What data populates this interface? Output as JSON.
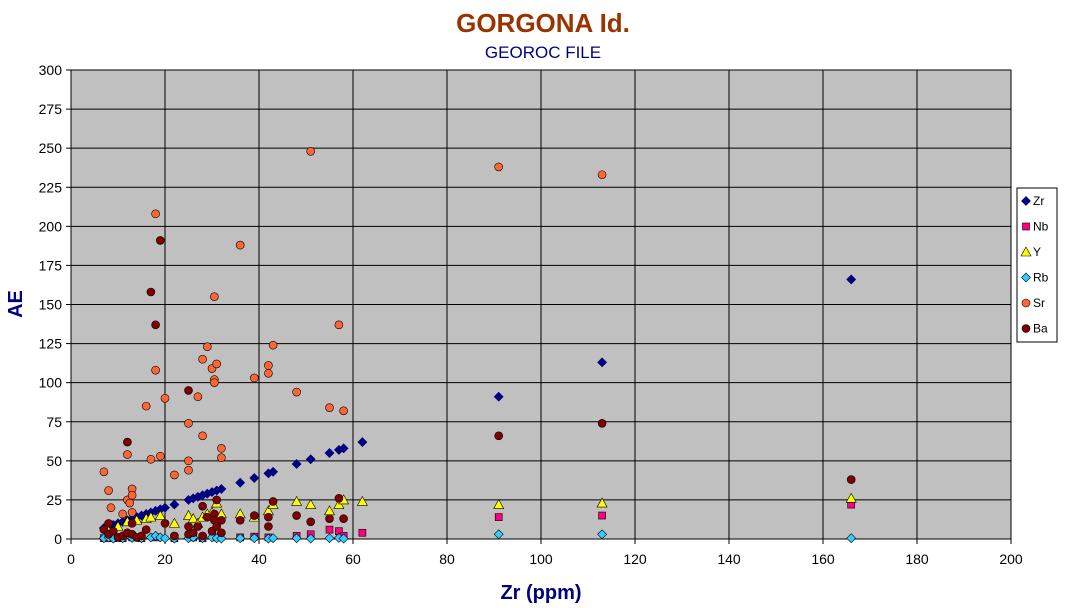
{
  "chart_data": {
    "type": "scatter",
    "title": "GORGONA Id.",
    "subtitle": "GEOROC FILE",
    "xlabel": "Zr (ppm)",
    "ylabel": "AE",
    "xlim": [
      0,
      200
    ],
    "ylim": [
      0,
      300
    ],
    "x_ticks": [
      "0",
      "20",
      "40",
      "60",
      "80",
      "100",
      "120",
      "140",
      "160",
      "180",
      "200"
    ],
    "y_ticks": [
      "0",
      "25",
      "50",
      "75",
      "100",
      "125",
      "150",
      "175",
      "200",
      "225",
      "250",
      "275",
      "300"
    ],
    "grid": true,
    "legend": "right",
    "plot_background": "#c0c0c0",
    "series": [
      {
        "name": "Zr",
        "marker": "diamond",
        "color": "#000080",
        "points": [
          [
            7,
            7
          ],
          [
            8,
            8
          ],
          [
            9,
            9
          ],
          [
            10,
            10
          ],
          [
            11,
            11
          ],
          [
            12,
            12
          ],
          [
            13,
            13
          ],
          [
            14,
            14
          ],
          [
            15,
            15
          ],
          [
            16,
            16
          ],
          [
            17,
            17
          ],
          [
            18,
            18
          ],
          [
            19,
            19
          ],
          [
            20,
            20
          ],
          [
            22,
            22
          ],
          [
            25,
            25
          ],
          [
            26,
            26
          ],
          [
            27,
            27
          ],
          [
            28,
            28
          ],
          [
            29,
            29
          ],
          [
            30,
            30
          ],
          [
            31,
            31
          ],
          [
            32,
            32
          ],
          [
            36,
            36
          ],
          [
            39,
            39
          ],
          [
            42,
            42
          ],
          [
            43,
            43
          ],
          [
            48,
            48
          ],
          [
            51,
            51
          ],
          [
            55,
            55
          ],
          [
            57,
            57
          ],
          [
            58,
            58
          ],
          [
            62,
            62
          ],
          [
            91,
            91
          ],
          [
            113,
            113
          ],
          [
            166,
            166
          ]
        ]
      },
      {
        "name": "Nb",
        "marker": "square",
        "color": "#ff0080",
        "points": [
          [
            7,
            0.5
          ],
          [
            9,
            0.5
          ],
          [
            11,
            0.5
          ],
          [
            13,
            1
          ],
          [
            15,
            0.5
          ],
          [
            18,
            1
          ],
          [
            22,
            0.5
          ],
          [
            26,
            1
          ],
          [
            28,
            0.5
          ],
          [
            31,
            1
          ],
          [
            36,
            1
          ],
          [
            39,
            1.5
          ],
          [
            42,
            1
          ],
          [
            48,
            2
          ],
          [
            51,
            3
          ],
          [
            55,
            6
          ],
          [
            57,
            5
          ],
          [
            58,
            2
          ],
          [
            62,
            4
          ],
          [
            91,
            14
          ],
          [
            113,
            15
          ],
          [
            166,
            22
          ]
        ]
      },
      {
        "name": "Y",
        "marker": "triangle",
        "color": "#ffff00",
        "points": [
          [
            8,
            5
          ],
          [
            10,
            8
          ],
          [
            12,
            11
          ],
          [
            14,
            12
          ],
          [
            16,
            13
          ],
          [
            17,
            14
          ],
          [
            19,
            15
          ],
          [
            22,
            10
          ],
          [
            25,
            15
          ],
          [
            26,
            13
          ],
          [
            27,
            10
          ],
          [
            28,
            14
          ],
          [
            29,
            16
          ],
          [
            30,
            17
          ],
          [
            31,
            23
          ],
          [
            32,
            16
          ],
          [
            36,
            16
          ],
          [
            39,
            14
          ],
          [
            42,
            18
          ],
          [
            43,
            22
          ],
          [
            48,
            24
          ],
          [
            51,
            22
          ],
          [
            55,
            18
          ],
          [
            57,
            22
          ],
          [
            58,
            25
          ],
          [
            62,
            24
          ],
          [
            91,
            22
          ],
          [
            113,
            23
          ],
          [
            166,
            26
          ]
        ]
      },
      {
        "name": "Rb",
        "marker": "diamond",
        "color": "#33ccff",
        "points": [
          [
            7,
            0.5
          ],
          [
            8,
            1
          ],
          [
            9,
            0.3
          ],
          [
            11,
            0.5
          ],
          [
            13,
            0.7
          ],
          [
            15,
            0.5
          ],
          [
            17,
            1
          ],
          [
            18,
            2
          ],
          [
            19,
            1
          ],
          [
            20,
            0.5
          ],
          [
            22,
            0.3
          ],
          [
            25,
            0.5
          ],
          [
            26,
            1
          ],
          [
            28,
            0.5
          ],
          [
            30,
            1
          ],
          [
            31,
            0.5
          ],
          [
            32,
            0.3
          ],
          [
            36,
            0.5
          ],
          [
            39,
            0.5
          ],
          [
            42,
            0.3
          ],
          [
            43,
            0.5
          ],
          [
            48,
            0.5
          ],
          [
            51,
            0.3
          ],
          [
            55,
            0.5
          ],
          [
            57,
            0.7
          ],
          [
            58,
            0.3
          ],
          [
            91,
            3
          ],
          [
            113,
            3
          ],
          [
            166,
            0.5
          ]
        ]
      },
      {
        "name": "Sr",
        "marker": "circle",
        "color": "#ff6633",
        "points": [
          [
            7,
            43
          ],
          [
            8,
            31
          ],
          [
            8.5,
            20
          ],
          [
            11,
            16
          ],
          [
            12,
            54
          ],
          [
            12,
            25
          ],
          [
            12.5,
            23
          ],
          [
            13,
            32
          ],
          [
            13,
            28
          ],
          [
            13,
            17
          ],
          [
            16,
            85
          ],
          [
            17,
            51
          ],
          [
            18,
            208
          ],
          [
            18,
            108
          ],
          [
            19,
            53
          ],
          [
            20,
            90
          ],
          [
            22,
            41
          ],
          [
            25,
            74
          ],
          [
            25,
            44
          ],
          [
            25,
            50
          ],
          [
            27,
            91
          ],
          [
            28,
            115
          ],
          [
            28,
            66
          ],
          [
            29,
            123
          ],
          [
            30,
            109
          ],
          [
            30.5,
            155
          ],
          [
            30.5,
            102
          ],
          [
            30.5,
            100
          ],
          [
            31,
            112
          ],
          [
            32,
            58
          ],
          [
            32,
            52
          ],
          [
            36,
            188
          ],
          [
            39,
            103
          ],
          [
            42,
            111
          ],
          [
            42,
            106
          ],
          [
            43,
            124
          ],
          [
            48,
            94
          ],
          [
            51,
            248
          ],
          [
            55,
            84
          ],
          [
            57,
            137
          ],
          [
            58,
            82
          ],
          [
            91,
            238
          ],
          [
            113,
            233
          ]
        ]
      },
      {
        "name": "Ba",
        "marker": "circle",
        "color": "#800000",
        "points": [
          [
            7,
            6
          ],
          [
            8,
            10
          ],
          [
            8,
            3
          ],
          [
            9,
            5
          ],
          [
            10,
            1
          ],
          [
            11,
            2
          ],
          [
            12,
            62
          ],
          [
            12,
            4
          ],
          [
            13,
            10
          ],
          [
            13,
            3
          ],
          [
            14,
            1
          ],
          [
            15,
            2
          ],
          [
            16,
            6
          ],
          [
            17,
            158
          ],
          [
            18,
            137
          ],
          [
            19,
            191
          ],
          [
            20,
            10
          ],
          [
            22,
            2
          ],
          [
            25,
            95
          ],
          [
            25,
            8
          ],
          [
            25,
            3
          ],
          [
            26,
            4
          ],
          [
            27,
            8
          ],
          [
            28,
            2
          ],
          [
            28,
            21
          ],
          [
            29,
            14
          ],
          [
            30,
            5
          ],
          [
            30.5,
            16
          ],
          [
            30.5,
            12
          ],
          [
            31,
            25
          ],
          [
            31,
            8
          ],
          [
            32,
            12
          ],
          [
            32,
            4
          ],
          [
            36,
            12
          ],
          [
            39,
            15
          ],
          [
            42,
            8
          ],
          [
            42,
            14
          ],
          [
            43,
            24
          ],
          [
            48,
            15
          ],
          [
            51,
            11
          ],
          [
            55,
            13
          ],
          [
            57,
            26
          ],
          [
            58,
            13
          ],
          [
            91,
            66
          ],
          [
            113,
            74
          ],
          [
            166,
            38
          ]
        ]
      }
    ]
  }
}
